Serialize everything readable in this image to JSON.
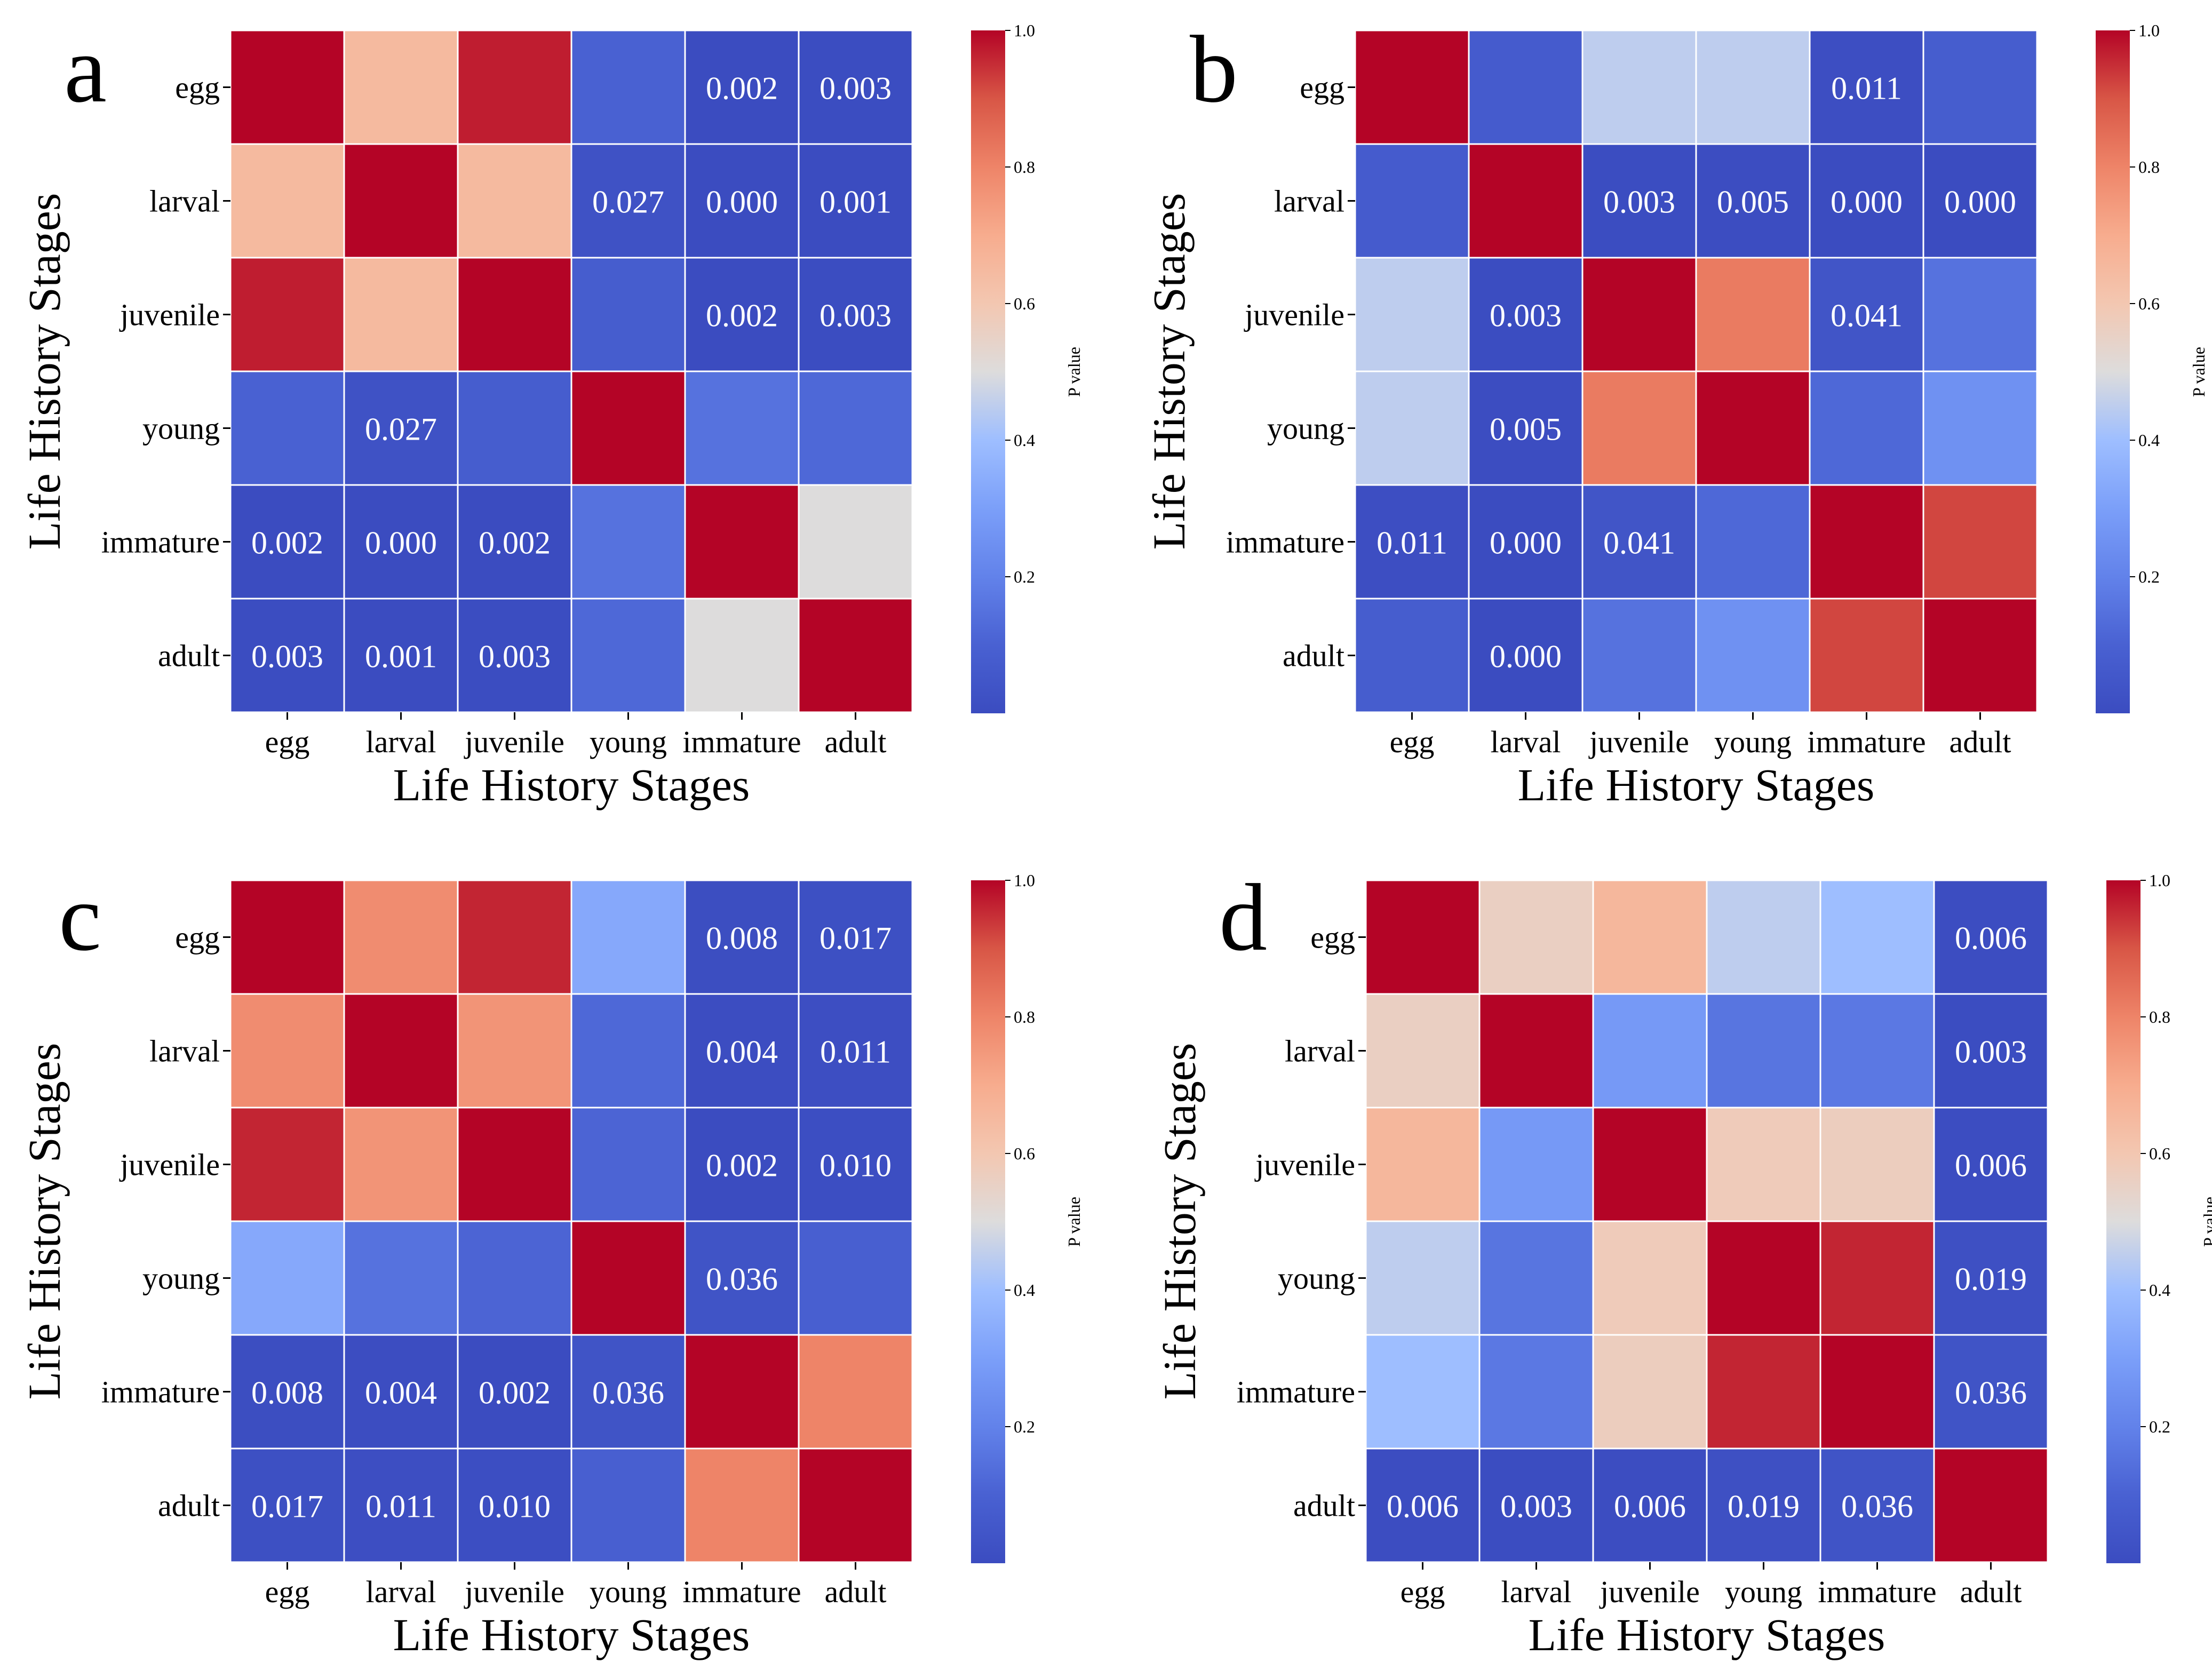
{
  "figure": {
    "colorbar_label": "P value",
    "colorbar_ticks": [
      0.2,
      0.4,
      0.6,
      0.8,
      1.0
    ],
    "colors": {
      "low": "#3b4cc0",
      "mid": "#dddcdc",
      "high": "#b40426"
    }
  },
  "chart_data": [
    {
      "type": "heatmap",
      "panel_label": "a",
      "xlabel": "Life History Stages",
      "ylabel": "Life History Stages",
      "categories": [
        "egg",
        "larval",
        "juvenile",
        "young",
        "immature",
        "adult"
      ],
      "colorbar_label": "P value",
      "vlim": [
        0,
        1
      ],
      "values": [
        [
          1.0,
          0.65,
          0.97,
          0.1,
          0.002,
          0.003
        ],
        [
          0.65,
          1.0,
          0.65,
          0.027,
          0.0,
          0.001
        ],
        [
          0.97,
          0.65,
          1.0,
          0.08,
          0.002,
          0.003
        ],
        [
          0.1,
          0.027,
          0.08,
          1.0,
          0.15,
          0.12
        ],
        [
          0.002,
          0.0,
          0.002,
          0.15,
          1.0,
          0.5
        ],
        [
          0.003,
          0.001,
          0.003,
          0.12,
          0.5,
          1.0
        ]
      ],
      "cell_labels": [
        [
          "",
          "",
          "",
          "",
          "0.002",
          "0.003"
        ],
        [
          "",
          "",
          "",
          "0.027",
          "0.000",
          "0.001"
        ],
        [
          "",
          "",
          "",
          "",
          "0.002",
          "0.003"
        ],
        [
          "",
          "0.027",
          "",
          "",
          "",
          ""
        ],
        [
          "0.002",
          "0.000",
          "0.002",
          "",
          "",
          ""
        ],
        [
          "0.003",
          "0.001",
          "0.003",
          "",
          "",
          ""
        ]
      ]
    },
    {
      "type": "heatmap",
      "panel_label": "b",
      "xlabel": "Life History Stages",
      "ylabel": "Life History Stages",
      "categories": [
        "egg",
        "larval",
        "juvenile",
        "young",
        "immature",
        "adult"
      ],
      "colorbar_label": "P value",
      "vlim": [
        0,
        1
      ],
      "values": [
        [
          1.0,
          0.07,
          0.45,
          0.45,
          0.011,
          0.08
        ],
        [
          0.07,
          1.0,
          0.003,
          0.005,
          0.0,
          0.0
        ],
        [
          0.45,
          0.003,
          1.0,
          0.82,
          0.041,
          0.15
        ],
        [
          0.45,
          0.005,
          0.82,
          1.0,
          0.12,
          0.25
        ],
        [
          0.011,
          0.0,
          0.041,
          0.12,
          1.0,
          0.92
        ],
        [
          0.08,
          0.0,
          0.15,
          0.25,
          0.92,
          1.0
        ]
      ],
      "cell_labels": [
        [
          "",
          "",
          "",
          "",
          "0.011",
          ""
        ],
        [
          "",
          "",
          "0.003",
          "0.005",
          "0.000",
          "0.000"
        ],
        [
          "",
          "0.003",
          "",
          "",
          "0.041",
          ""
        ],
        [
          "",
          "0.005",
          "",
          "",
          "",
          ""
        ],
        [
          "0.011",
          "0.000",
          "0.041",
          "",
          "",
          ""
        ],
        [
          "",
          "0.000",
          "",
          "",
          "",
          ""
        ]
      ]
    },
    {
      "type": "heatmap",
      "panel_label": "c",
      "xlabel": "Life History Stages",
      "ylabel": "Life History Stages",
      "categories": [
        "egg",
        "larval",
        "juvenile",
        "young",
        "immature",
        "adult"
      ],
      "colorbar_label": "P value",
      "vlim": [
        0,
        1
      ],
      "values": [
        [
          1.0,
          0.78,
          0.96,
          0.33,
          0.008,
          0.017
        ],
        [
          0.78,
          1.0,
          0.76,
          0.12,
          0.004,
          0.011
        ],
        [
          0.96,
          0.76,
          1.0,
          0.11,
          0.002,
          0.01
        ],
        [
          0.33,
          0.15,
          0.11,
          1.0,
          0.036,
          0.09
        ],
        [
          0.008,
          0.004,
          0.002,
          0.036,
          1.0,
          0.8
        ],
        [
          0.017,
          0.011,
          0.01,
          0.09,
          0.8,
          1.0
        ]
      ],
      "cell_labels": [
        [
          "",
          "",
          "",
          "",
          "0.008",
          "0.017"
        ],
        [
          "",
          "",
          "",
          "",
          "0.004",
          "0.011"
        ],
        [
          "",
          "",
          "",
          "",
          "0.002",
          "0.010"
        ],
        [
          "",
          "",
          "",
          "",
          "0.036",
          ""
        ],
        [
          "0.008",
          "0.004",
          "0.002",
          "0.036",
          "",
          ""
        ],
        [
          "0.017",
          "0.011",
          "0.010",
          "",
          "",
          ""
        ]
      ]
    },
    {
      "type": "heatmap",
      "panel_label": "d",
      "xlabel": "Life History Stages",
      "ylabel": "Life History Stages",
      "categories": [
        "egg",
        "larval",
        "juvenile",
        "young",
        "immature",
        "adult"
      ],
      "colorbar_label": "P value",
      "vlim": [
        0,
        1
      ],
      "values": [
        [
          1.0,
          0.56,
          0.66,
          0.45,
          0.4,
          0.006
        ],
        [
          0.56,
          1.0,
          0.28,
          0.16,
          0.17,
          0.003
        ],
        [
          0.66,
          0.28,
          1.0,
          0.58,
          0.57,
          0.006
        ],
        [
          0.45,
          0.16,
          0.58,
          1.0,
          0.96,
          0.019
        ],
        [
          0.4,
          0.17,
          0.57,
          0.96,
          1.0,
          0.036
        ],
        [
          0.006,
          0.003,
          0.006,
          0.019,
          0.036,
          1.0
        ]
      ],
      "cell_labels": [
        [
          "",
          "",
          "",
          "",
          "",
          "0.006"
        ],
        [
          "",
          "",
          "",
          "",
          "",
          "0.003"
        ],
        [
          "",
          "",
          "",
          "",
          "",
          "0.006"
        ],
        [
          "",
          "",
          "",
          "",
          "",
          "0.019"
        ],
        [
          "",
          "",
          "",
          "",
          "",
          "0.036"
        ],
        [
          "0.006",
          "0.003",
          "0.006",
          "0.019",
          "0.036",
          ""
        ]
      ]
    }
  ]
}
